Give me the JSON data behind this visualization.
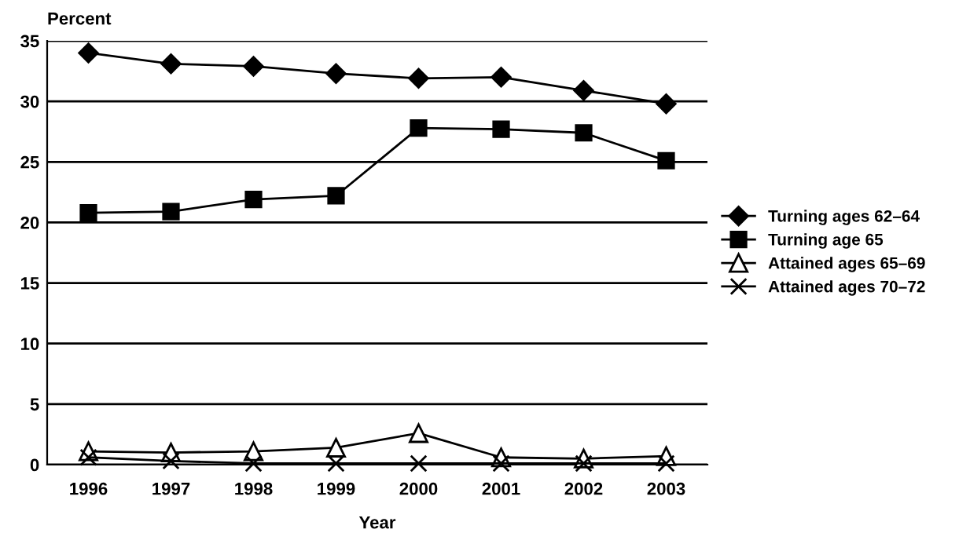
{
  "chart_data": {
    "type": "line",
    "ylabel": "Percent",
    "xlabel": "Year",
    "categories": [
      "1996",
      "1997",
      "1998",
      "1999",
      "2000",
      "2001",
      "2002",
      "2003"
    ],
    "series": [
      {
        "name": "Turning ages 62–64",
        "color": "#000000",
        "marker": "diamond",
        "values": [
          34.0,
          33.1,
          32.9,
          32.3,
          31.9,
          32.0,
          30.9,
          29.8
        ]
      },
      {
        "name": "Turning age 65",
        "color": "#000000",
        "marker": "square",
        "values": [
          20.8,
          20.9,
          21.9,
          22.2,
          27.8,
          27.7,
          27.4,
          25.1
        ]
      },
      {
        "name": "Attained ages 65–69",
        "color": "#000000",
        "marker": "triangle",
        "values": [
          1.1,
          1.0,
          1.1,
          1.4,
          2.6,
          0.6,
          0.5,
          0.7
        ]
      },
      {
        "name": "Attained ages 70–72",
        "color": "#000000",
        "marker": "cross",
        "values": [
          0.6,
          0.3,
          0.1,
          0.1,
          0.1,
          0.1,
          0.1,
          0.1
        ]
      }
    ],
    "ylim": [
      0,
      35
    ],
    "yticks": [
      0,
      5,
      10,
      15,
      20,
      25,
      30,
      35
    ],
    "grid": "y",
    "legend": "right",
    "line_style": "solid"
  }
}
